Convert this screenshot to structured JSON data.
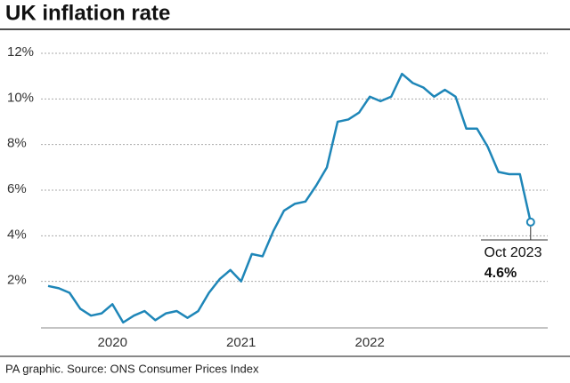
{
  "chart_data": {
    "type": "line",
    "title": "UK inflation rate",
    "source": "PA graphic. Source: ONS Consumer Prices Index",
    "categories": [
      null,
      null,
      null,
      null,
      null,
      null,
      "2020",
      null,
      null,
      null,
      null,
      null,
      null,
      null,
      null,
      null,
      null,
      null,
      "2021",
      null,
      null,
      null,
      null,
      null,
      null,
      null,
      null,
      null,
      null,
      null,
      "2022",
      null,
      null,
      null,
      null,
      null,
      null,
      null,
      null,
      null,
      null,
      null,
      null,
      null,
      null,
      null
    ],
    "series": [
      {
        "name": "UK inflation rate",
        "color": "#1e86b8",
        "values": [
          1.8,
          1.7,
          1.5,
          0.8,
          0.5,
          0.6,
          1.0,
          0.2,
          0.5,
          0.7,
          0.3,
          0.6,
          0.7,
          0.4,
          0.7,
          1.5,
          2.1,
          2.5,
          2.0,
          3.2,
          3.1,
          4.2,
          5.1,
          5.4,
          5.5,
          6.2,
          7.0,
          9.0,
          9.1,
          9.4,
          10.1,
          9.9,
          10.1,
          11.1,
          10.7,
          10.5,
          10.1,
          10.4,
          10.1,
          8.7,
          8.7,
          7.9,
          6.8,
          6.7,
          6.7,
          4.6
        ],
        "value_labels": [
          null,
          null,
          null,
          null,
          null,
          null,
          null,
          null,
          null,
          null,
          null,
          null,
          null,
          null,
          null,
          null,
          null,
          null,
          null,
          null,
          null,
          null,
          null,
          null,
          null,
          null,
          null,
          null,
          null,
          null,
          null,
          null,
          null,
          null,
          null,
          null,
          null,
          null,
          null,
          null,
          null,
          null,
          null,
          null,
          null,
          "4.6%"
        ]
      }
    ],
    "annotation": "Oct 2023",
    "ylim": [
      0,
      12
    ],
    "yticks": [
      {
        "value": 2,
        "label": "2%"
      },
      {
        "value": 4,
        "label": "4%"
      },
      {
        "value": 6,
        "label": "6%"
      },
      {
        "value": 8,
        "label": "8%"
      },
      {
        "value": 10,
        "label": "10%"
      },
      {
        "value": 12,
        "label": "12%"
      }
    ],
    "grid": true
  }
}
